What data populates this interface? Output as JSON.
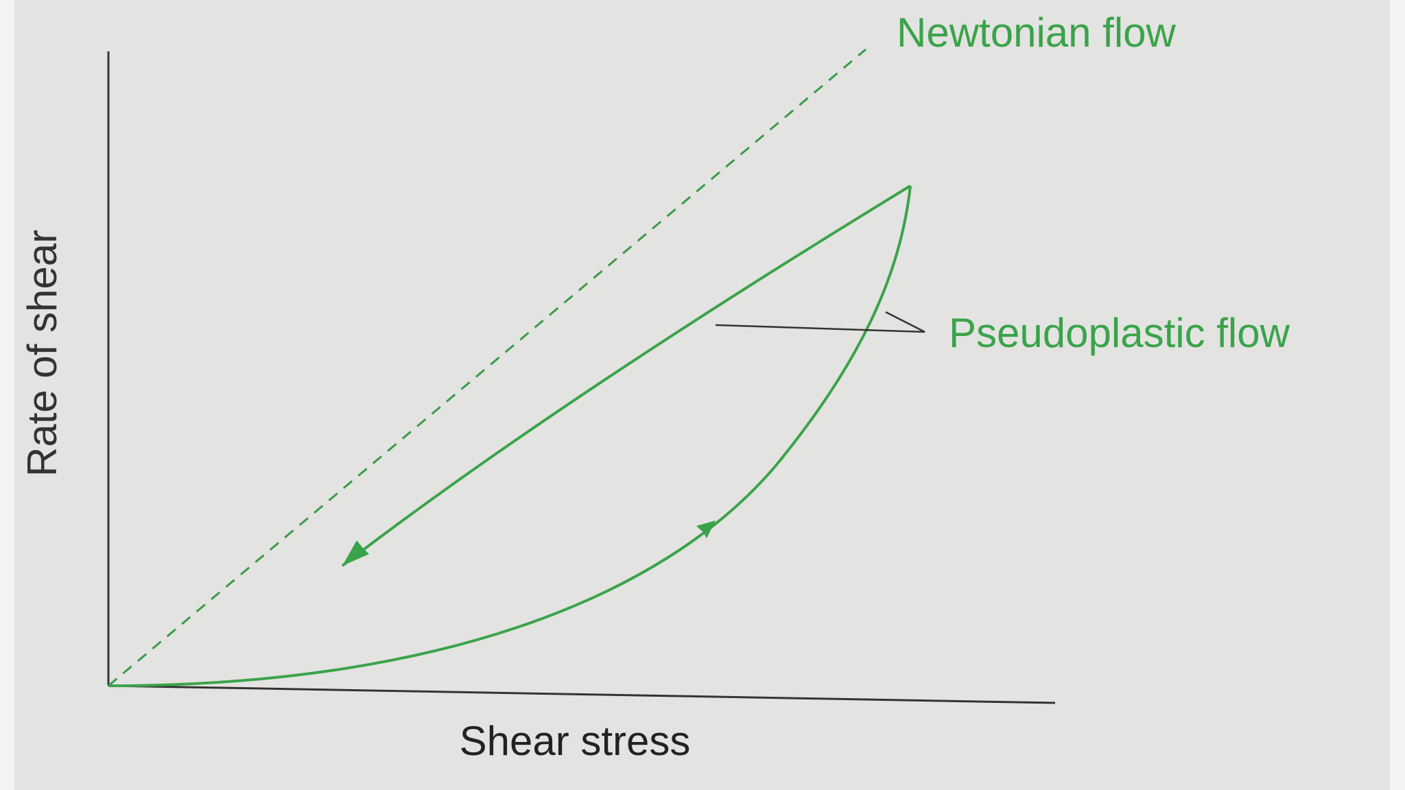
{
  "labels": {
    "newtonian": "Newtonian flow",
    "pseudoplastic": "Pseudoplastic flow"
  },
  "axes": {
    "y_label": "Rate of shear",
    "x_label": "Shear stress"
  }
}
